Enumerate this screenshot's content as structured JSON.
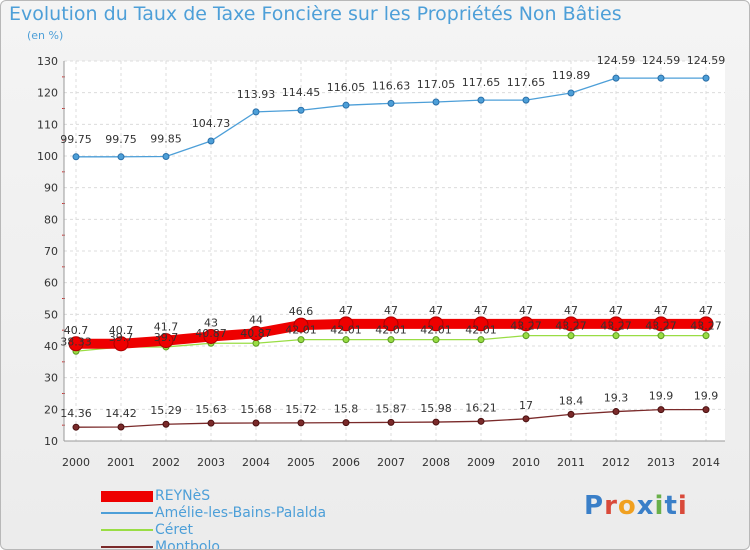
{
  "chart_data": {
    "type": "line",
    "title": "Evolution du Taux de Taxe Foncière sur les Propriétés Non Bâties",
    "unit_label": "(en %)",
    "x": [
      "2000",
      "2001",
      "2002",
      "2003",
      "2004",
      "2005",
      "2006",
      "2007",
      "2008",
      "2009",
      "2010",
      "2011",
      "2012",
      "2013",
      "2014"
    ],
    "ylim": [
      10,
      130
    ],
    "yticks": [
      10,
      20,
      30,
      40,
      50,
      60,
      70,
      80,
      90,
      100,
      110,
      120,
      130
    ],
    "grid": true,
    "legend_position": "bottom-left",
    "series": [
      {
        "name": "REYNèS",
        "color": "#ee0000",
        "values": [
          40.7,
          40.7,
          41.7,
          43,
          44,
          46.6,
          47,
          47,
          47,
          47,
          47,
          47,
          47,
          47,
          47
        ],
        "labels": [
          "40.7",
          "40.7",
          "41.7",
          "43",
          "44",
          "46.6",
          "47",
          "47",
          "47",
          "47",
          "47",
          "47",
          "47",
          "47",
          "47"
        ]
      },
      {
        "name": "Amélie-les-Bains-Palalda",
        "color": "#4d9fd8",
        "values": [
          99.75,
          99.75,
          99.85,
          104.73,
          113.93,
          114.45,
          116.05,
          116.63,
          117.05,
          117.65,
          117.65,
          119.89,
          124.59,
          124.59,
          124.59
        ],
        "labels": [
          "99.75",
          "99.75",
          "99.85",
          "104.73",
          "113.93",
          "114.45",
          "116.05",
          "116.63",
          "117.05",
          "117.65",
          "117.65",
          "119.89",
          "124.59",
          "124.59",
          "124.59"
        ]
      },
      {
        "name": "Céret",
        "color": "#99dd44",
        "values": [
          38.33,
          39.7,
          39.7,
          40.87,
          40.87,
          42.01,
          42.01,
          42.01,
          42.01,
          42.01,
          43.27,
          43.27,
          43.27,
          43.27,
          43.27
        ],
        "labels": [
          "38.33",
          "39.7",
          "39.7",
          "40.87",
          "40.87",
          "42.01",
          "42.01",
          "42.01",
          "42.01",
          "42.01",
          "43.27",
          "43.27",
          "43.27",
          "43.27",
          "43.27"
        ]
      },
      {
        "name": "Montbolo",
        "color": "#7a2a2a",
        "values": [
          14.36,
          14.42,
          15.29,
          15.63,
          15.68,
          15.72,
          15.8,
          15.87,
          15.98,
          16.21,
          17,
          18.4,
          19.3,
          19.9,
          19.9
        ],
        "labels": [
          "14.36",
          "14.42",
          "15.29",
          "15.63",
          "15.68",
          "15.72",
          "15.8",
          "15.87",
          "15.98",
          "16.21",
          "17",
          "18.4",
          "19.3",
          "19.9",
          "19.9"
        ]
      }
    ]
  },
  "logo": {
    "text": "Proxiti",
    "letters": [
      "P",
      "r",
      "o",
      "x",
      "i",
      "t",
      "i"
    ],
    "colors": [
      "#3a7fc8",
      "#d94a3a",
      "#f0a020",
      "#3a7fc8",
      "#6ab04a",
      "#3a7fc8",
      "#d94a3a"
    ]
  }
}
